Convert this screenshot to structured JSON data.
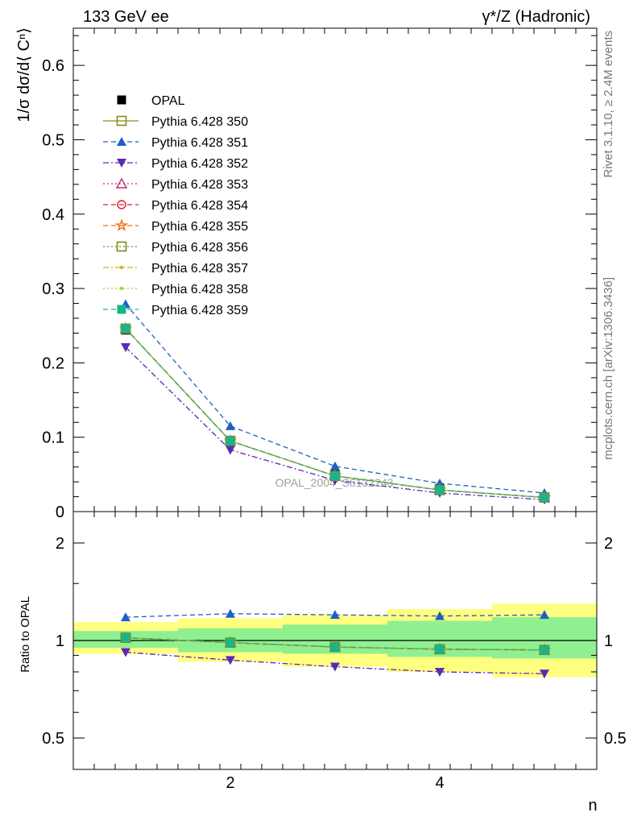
{
  "header": {
    "left_title": "133 GeV ee",
    "right_title": "γ*/Z (Hadronic)",
    "side_text_top": "Rivet 3.1.10, ≥ 2.4M events",
    "side_text_bottom": "mcplots.cern.ch [arXiv:1306.3436]",
    "watermark": "OPAL_2004_S6132243"
  },
  "chart_data": [
    {
      "type": "line",
      "panel": "main",
      "ylabel": "1/σ dσ/d⟨ Cⁿ⟩",
      "xlabel": "",
      "xlim": [
        0.5,
        5.5
      ],
      "ylim": [
        0,
        0.65
      ],
      "yticks": [
        "0",
        "0.1",
        "0.2",
        "0.3",
        "0.4",
        "0.5",
        "0.6"
      ],
      "xticks": [
        "2",
        "4"
      ],
      "legend_position": "top-left",
      "x": [
        1,
        2,
        3,
        4,
        5
      ],
      "series": [
        {
          "name": "OPAL",
          "values": [
            0.244,
            0.096,
            0.05,
            0.031,
            0.02
          ],
          "color": "#000000",
          "marker": "filled-square",
          "dash": "none"
        },
        {
          "name": "Pythia 6.428 350",
          "values": [
            0.246,
            0.095,
            0.048,
            0.029,
            0.019
          ],
          "color": "#8c8c1e",
          "marker": "open-square",
          "dash": "solid"
        },
        {
          "name": "Pythia 6.428 351",
          "values": [
            0.279,
            0.115,
            0.061,
            0.038,
            0.025
          ],
          "color": "#1f5fc4",
          "marker": "filled-triangle-up",
          "dash": "dashed"
        },
        {
          "name": "Pythia 6.428 352",
          "values": [
            0.221,
            0.083,
            0.042,
            0.025,
            0.016
          ],
          "color": "#5a2ab4",
          "marker": "filled-triangle-down",
          "dash": "dashdot"
        },
        {
          "name": "Pythia 6.428 353",
          "values": [
            0.246,
            0.095,
            0.048,
            0.029,
            0.019
          ],
          "color": "#c8287a",
          "marker": "open-triangle-up",
          "dash": "dotted"
        },
        {
          "name": "Pythia 6.428 354",
          "values": [
            0.246,
            0.095,
            0.048,
            0.029,
            0.019
          ],
          "color": "#e0202a",
          "marker": "open-circle",
          "dash": "dashed"
        },
        {
          "name": "Pythia 6.428 355",
          "values": [
            0.246,
            0.095,
            0.048,
            0.029,
            0.019
          ],
          "color": "#f06a10",
          "marker": "open-star",
          "dash": "dashed"
        },
        {
          "name": "Pythia 6.428 356",
          "values": [
            0.246,
            0.095,
            0.048,
            0.029,
            0.019
          ],
          "color": "#7d8c14",
          "marker": "open-square",
          "dash": "dotted"
        },
        {
          "name": "Pythia 6.428 357",
          "values": [
            0.246,
            0.095,
            0.048,
            0.029,
            0.019
          ],
          "color": "#d4b418",
          "marker": "small-dot",
          "dash": "dashdot"
        },
        {
          "name": "Pythia 6.428 358",
          "values": [
            0.246,
            0.095,
            0.048,
            0.029,
            0.019
          ],
          "color": "#b8cc20",
          "marker": "small-dot",
          "dash": "dotted"
        },
        {
          "name": "Pythia 6.428 359",
          "values": [
            0.246,
            0.095,
            0.048,
            0.029,
            0.019
          ],
          "color": "#1ab48c",
          "marker": "filled-square",
          "dash": "dashed"
        }
      ]
    },
    {
      "type": "line",
      "panel": "ratio",
      "ylabel": "Ratio to OPAL",
      "xlabel": "n",
      "xlim": [
        0.5,
        5.5
      ],
      "ylim": [
        0.4,
        2.5
      ],
      "ylog": true,
      "yticks": [
        "0.5",
        "1",
        "2"
      ],
      "xticks": [
        "2",
        "4"
      ],
      "bands": {
        "x_edges": [
          0.5,
          1.5,
          2.5,
          3.5,
          4.5,
          5.5
        ],
        "stat_sys": [
          [
            0.91,
            1.14
          ],
          [
            0.86,
            1.17
          ],
          [
            0.83,
            1.2
          ],
          [
            0.8,
            1.25
          ],
          [
            0.77,
            1.3
          ]
        ],
        "stat": [
          [
            0.95,
            1.07
          ],
          [
            0.92,
            1.09
          ],
          [
            0.91,
            1.12
          ],
          [
            0.89,
            1.15
          ],
          [
            0.88,
            1.18
          ]
        ],
        "outer_color": "#ffff80",
        "inner_color": "#90f090"
      },
      "x": [
        1,
        2,
        3,
        4,
        5
      ],
      "series": [
        {
          "name": "Pythia 6.428 350",
          "values": [
            1.02,
            0.985,
            0.955,
            0.94,
            0.935
          ]
        },
        {
          "name": "Pythia 6.428 351",
          "values": [
            1.18,
            1.21,
            1.2,
            1.19,
            1.2
          ]
        },
        {
          "name": "Pythia 6.428 352",
          "values": [
            0.92,
            0.87,
            0.83,
            0.8,
            0.79
          ]
        },
        {
          "name": "Pythia 6.428 353",
          "values": [
            1.02,
            0.985,
            0.955,
            0.94,
            0.935
          ]
        },
        {
          "name": "Pythia 6.428 354",
          "values": [
            1.02,
            0.985,
            0.955,
            0.94,
            0.935
          ]
        },
        {
          "name": "Pythia 6.428 355",
          "values": [
            1.02,
            0.985,
            0.955,
            0.94,
            0.935
          ]
        },
        {
          "name": "Pythia 6.428 356",
          "values": [
            1.02,
            0.985,
            0.955,
            0.94,
            0.935
          ]
        },
        {
          "name": "Pythia 6.428 357",
          "values": [
            1.02,
            0.985,
            0.955,
            0.94,
            0.935
          ]
        },
        {
          "name": "Pythia 6.428 358",
          "values": [
            1.02,
            0.985,
            0.955,
            0.94,
            0.935
          ]
        },
        {
          "name": "Pythia 6.428 359",
          "values": [
            1.02,
            0.985,
            0.955,
            0.94,
            0.935
          ]
        }
      ]
    }
  ]
}
